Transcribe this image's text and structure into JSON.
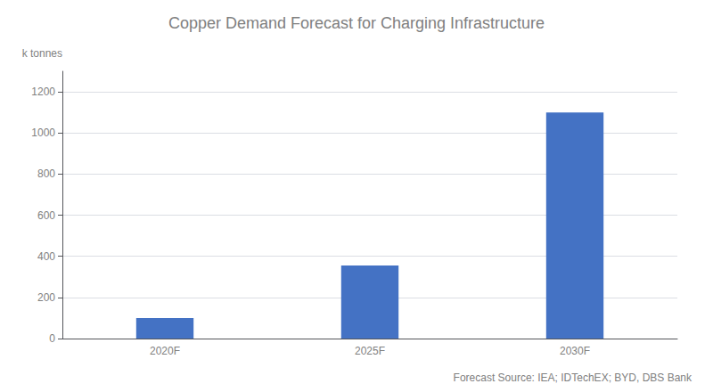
{
  "chart_data": {
    "type": "bar",
    "title": "Copper Demand Forecast for Charging Infrastructure",
    "ylabel": "k tonnes",
    "categories": [
      "2020F",
      "2025F",
      "2030F"
    ],
    "values": [
      100,
      355,
      1100
    ],
    "color": "#4472C4",
    "ylim": [
      0,
      1300
    ],
    "yticks": [
      0,
      200,
      400,
      600,
      800,
      1000,
      1200
    ],
    "grid": true,
    "annotations": [
      "Forecast Source: IEA; IDTechEX; BYD, DBS Bank"
    ]
  }
}
